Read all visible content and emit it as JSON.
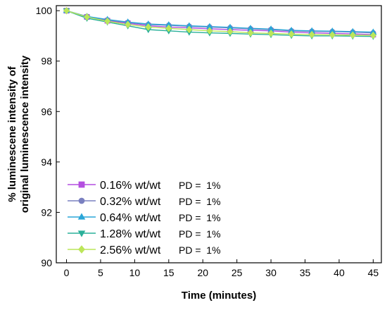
{
  "chart_data": {
    "type": "line",
    "title": "",
    "xlabel": "Time (minutes)",
    "ylabel_lines": [
      "% luminescene intensity of",
      "original luminescence intensity"
    ],
    "xlim": [
      -1.5,
      46.2
    ],
    "ylim": [
      90,
      100.2
    ],
    "x_ticks": [
      0,
      5,
      10,
      15,
      20,
      25,
      30,
      35,
      40,
      45
    ],
    "y_ticks": [
      90,
      92,
      94,
      96,
      98,
      100
    ],
    "grid": false,
    "legend_position": "lower-left",
    "x": [
      0,
      3,
      6,
      9,
      12,
      15,
      18,
      21,
      24,
      27,
      30,
      33,
      36,
      39,
      42,
      45
    ],
    "series": [
      {
        "name": "0.16% wt/wt",
        "note": "PD =  1%",
        "color": "#b44fe0",
        "marker": "square",
        "values": [
          100.0,
          99.75,
          99.6,
          99.5,
          99.4,
          99.35,
          99.32,
          99.28,
          99.25,
          99.22,
          99.2,
          99.15,
          99.12,
          99.1,
          99.08,
          99.05
        ]
      },
      {
        "name": "0.32% wt/wt",
        "note": "PD =  1%",
        "color": "#7a80c0",
        "marker": "circle",
        "values": [
          100.0,
          99.77,
          99.63,
          99.53,
          99.45,
          99.42,
          99.38,
          99.35,
          99.32,
          99.28,
          99.25,
          99.2,
          99.18,
          99.17,
          99.15,
          99.12
        ]
      },
      {
        "name": "0.64% wt/wt",
        "note": "PD =  1%",
        "color": "#2aa6d8",
        "marker": "triangle-up",
        "values": [
          100.0,
          99.77,
          99.65,
          99.55,
          99.47,
          99.44,
          99.4,
          99.37,
          99.34,
          99.3,
          99.27,
          99.22,
          99.2,
          99.19,
          99.17,
          99.15
        ]
      },
      {
        "name": "1.28% wt/wt",
        "note": "PD =  1%",
        "color": "#2ab09a",
        "marker": "triangle-down",
        "values": [
          100.0,
          99.7,
          99.55,
          99.4,
          99.25,
          99.2,
          99.15,
          99.12,
          99.1,
          99.07,
          99.05,
          99.02,
          99.0,
          99.0,
          98.99,
          98.98
        ]
      },
      {
        "name": "2.56% wt/wt",
        "note": "PD =  1%",
        "color": "#bce65a",
        "marker": "diamond",
        "values": [
          100.0,
          99.75,
          99.58,
          99.45,
          99.35,
          99.3,
          99.25,
          99.2,
          99.17,
          99.12,
          99.1,
          99.07,
          99.05,
          99.04,
          99.03,
          99.02
        ]
      }
    ]
  }
}
